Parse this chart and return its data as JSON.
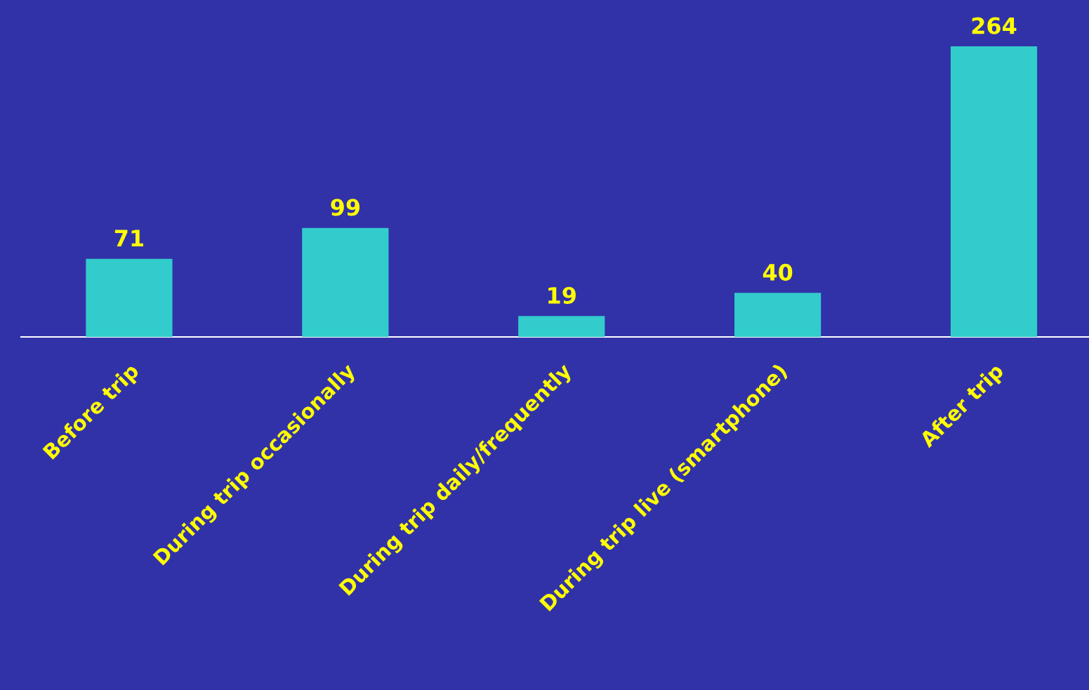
{
  "chart_data": {
    "type": "bar",
    "categories": [
      "Before trip",
      "During trip occasionally",
      "During trip daily/frequently",
      "During trip live (smartphone)",
      "After trip"
    ],
    "values": [
      71,
      99,
      19,
      40,
      264
    ],
    "color": "#33cccc",
    "data_labels": true,
    "grid": false,
    "legend": false
  }
}
